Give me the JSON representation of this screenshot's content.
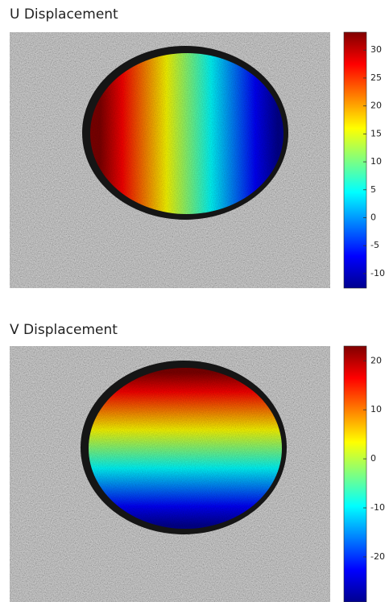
{
  "chart_data": [
    {
      "type": "heatmap",
      "title": "U Displacement",
      "colormap": "jet",
      "direction": "horizontal",
      "ylim": [
        -12.6,
        33.2
      ],
      "yticks": [
        -10,
        -5,
        0,
        5,
        10,
        15,
        20,
        25,
        30
      ]
    },
    {
      "type": "heatmap",
      "title": "V Displacement",
      "colormap": "jet",
      "direction": "vertical",
      "ylim": [
        -29.2,
        23
      ],
      "yticks": [
        -20,
        -10,
        0,
        10,
        20
      ]
    }
  ]
}
